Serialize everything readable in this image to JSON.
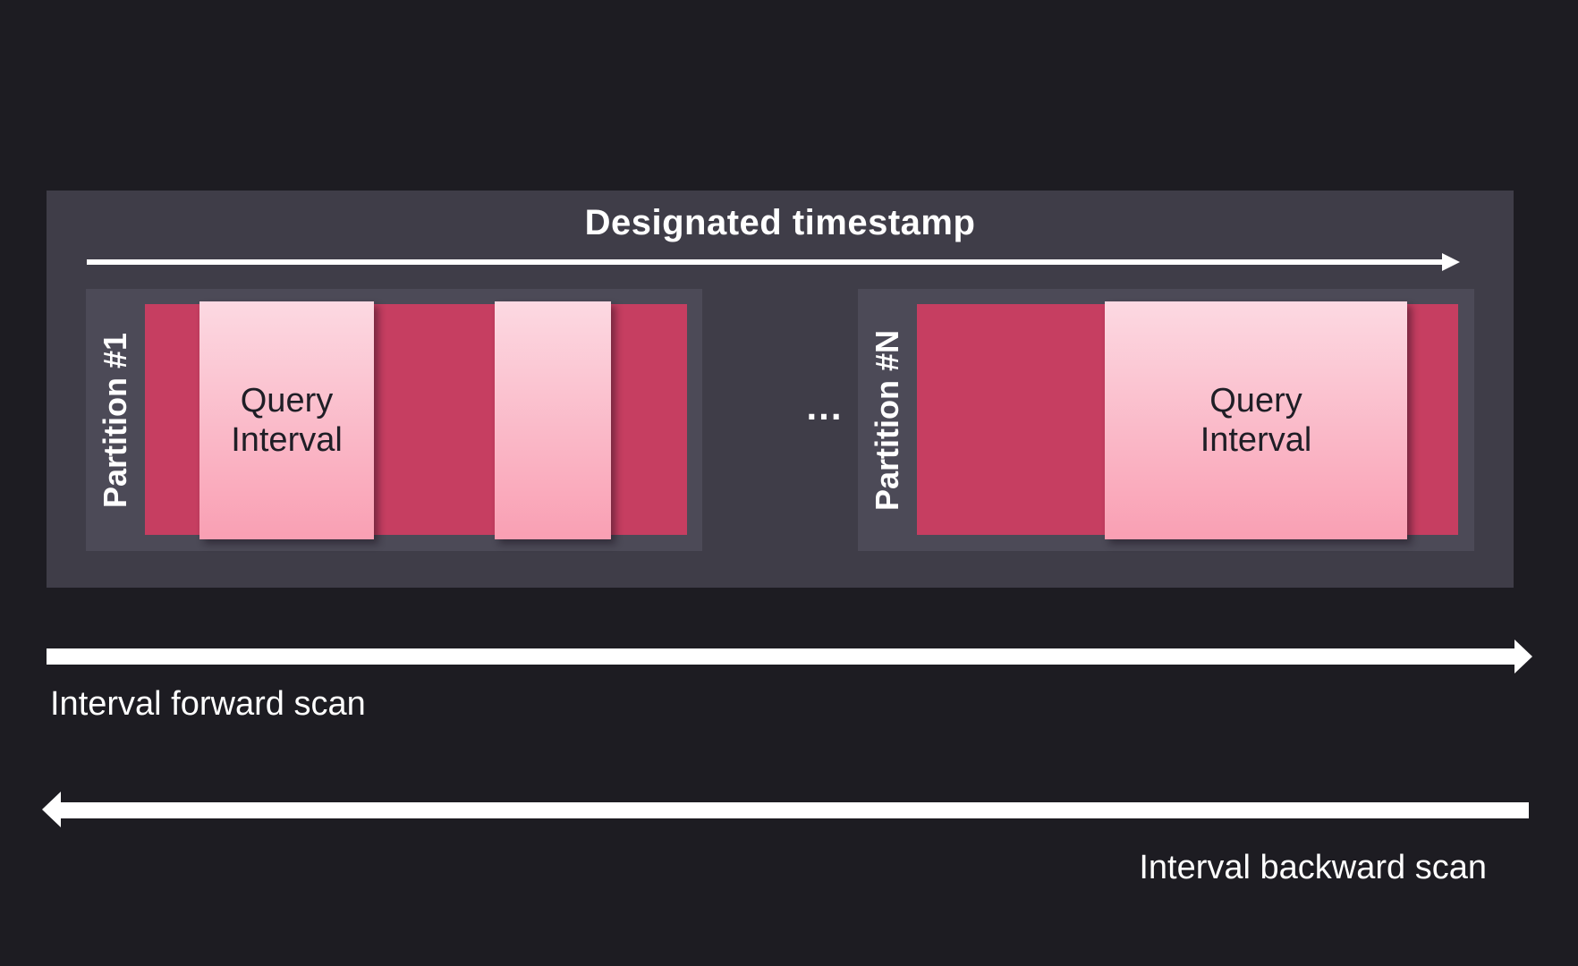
{
  "colors": {
    "background": "#1d1c22",
    "panel": "#3f3d48",
    "partition": "#4c4a57",
    "interval_bar": "#c63e61",
    "query_box_top": "#fcd9e2",
    "query_box_bottom": "#f99fb3",
    "query_text": "#1f1e26",
    "arrow_and_text": "#ffffff"
  },
  "diagram": {
    "title": "Designated timestamp",
    "ellipsis": "...",
    "partitions": [
      {
        "label": "Partition #1",
        "query_intervals": [
          {
            "label": "Query\nInterval"
          },
          {
            "label": ""
          }
        ]
      },
      {
        "label": "Partition #N",
        "query_intervals": [
          {
            "label": "Query\nInterval"
          }
        ]
      }
    ],
    "forward_scan_label": "Interval forward scan",
    "backward_scan_label": "Interval backward scan"
  }
}
